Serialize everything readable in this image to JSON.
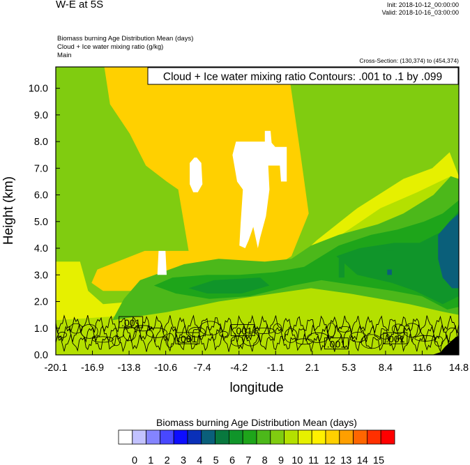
{
  "header": {
    "title": "W-E at 5S",
    "init": "Init: 2018-10-12_00:00:00",
    "valid": "Valid: 2018-10-16_03:00:00",
    "subtitle1": "Biomass burning Age Distribution Mean    (days)",
    "subtitle2": "Cloud + Ice water mixing ratio    (g/kg)",
    "subtitle3": "Main",
    "cross_section": "Cross-Section: (130,374) to (454,374)"
  },
  "chart_data": {
    "type": "heatmap",
    "title": "W-E at 5S",
    "xlabel": "longitude",
    "ylabel": "Height (km)",
    "xlim": [
      -20.1,
      14.8
    ],
    "ylim": [
      0.0,
      10.8
    ],
    "x_ticks": [
      "-20.1",
      "-16.9",
      "-13.8",
      "-10.6",
      "-7.4",
      "-4.2",
      "-1.1",
      "2.1",
      "5.3",
      "8.4",
      "11.6",
      "14.8"
    ],
    "y_ticks": [
      "0.0",
      "1.0",
      "2.0",
      "3.0",
      "4.0",
      "5.0",
      "6.0",
      "7.0",
      "8.0",
      "9.0",
      "10.0"
    ],
    "contour_info": "Cloud + Ice water mixing ratio Contours: .001 to .1 by .099",
    "contour_labels": [
      {
        "text": ".001",
        "x": -13.6,
        "y": 1.2
      },
      {
        "text": ".001",
        "x": -8.7,
        "y": 0.6
      },
      {
        "text": ".001",
        "x": -3.9,
        "y": 0.9
      },
      {
        "text": ".001",
        "x": 4.2,
        "y": 0.4
      },
      {
        "text": ".001",
        "x": 9.3,
        "y": 0.6
      }
    ],
    "colorbar": {
      "title": "Biomass burning Age Distribution Mean  (days)",
      "labels": [
        "0",
        "1",
        "2",
        "3",
        "4",
        "5",
        "6",
        "7",
        "8",
        "9",
        "10",
        "11",
        "12",
        "13",
        "14",
        "15"
      ],
      "colors": [
        "#ffffff",
        "#c2c2ff",
        "#8484ff",
        "#4848ff",
        "#0d0dff",
        "#0a30b8",
        "#0a5f7a",
        "#08783e",
        "#10952a",
        "#1ea51a",
        "#4cb81a",
        "#80cc10",
        "#b4e000",
        "#e6f000",
        "#fff000",
        "#ffd000",
        "#ff9f00",
        "#ff6600",
        "#ff3000",
        "#ff0000"
      ]
    },
    "series": [
      {
        "name": "age_regions",
        "regions": [
          {
            "value": 8.5,
            "polygon": [
              [
                -20.1,
                0
              ],
              [
                14.8,
                0
              ],
              [
                14.8,
                10.8
              ],
              [
                -20.1,
                10.8
              ]
            ]
          },
          {
            "value": 10.5,
            "polygon": [
              [
                -20.1,
                3.5
              ],
              [
                -18.0,
                3.5
              ],
              [
                -17.3,
                2.4
              ],
              [
                -16.0,
                1.9
              ],
              [
                -8.0,
                2.2
              ],
              [
                -1.2,
                2.8
              ],
              [
                2.5,
                4.3
              ],
              [
                6.0,
                5.5
              ],
              [
                10.0,
                6.6
              ],
              [
                12.5,
                7.0
              ],
              [
                14.0,
                7.6
              ],
              [
                14.8,
                6.7
              ],
              [
                14.8,
                0
              ],
              [
                -20.1,
                0
              ]
            ]
          },
          {
            "value": 11.5,
            "polygon": [
              [
                -15.9,
                10.8
              ],
              [
                -15.4,
                9.4
              ],
              [
                -13.7,
                8.3
              ],
              [
                -12.3,
                7.1
              ],
              [
                -10.5,
                6.5
              ],
              [
                -9.5,
                6.2
              ],
              [
                -8.6,
                3.9
              ],
              [
                -12.4,
                3.9
              ],
              [
                -16.5,
                3.2
              ],
              [
                -17.0,
                2.7
              ],
              [
                -16.0,
                2.4
              ],
              [
                -6.0,
                2.4
              ],
              [
                -2.3,
                3.0
              ],
              [
                0.3,
                3.7
              ],
              [
                1.8,
                5.3
              ],
              [
                1.1,
                7.5
              ],
              [
                0.6,
                9.0
              ],
              [
                0.0,
                10.8
              ]
            ]
          },
          {
            "value": 12.0,
            "polygon": [
              [
                -12.6,
                10.8
              ],
              [
                -12.0,
                10.1
              ],
              [
                -12.2,
                9.1
              ],
              [
                -11.6,
                8.3
              ],
              [
                -9.2,
                8.0
              ],
              [
                -8.3,
                7.2
              ],
              [
                -6.2,
                6.8
              ],
              [
                -3.9,
                6.7
              ],
              [
                -2.7,
                6.9
              ],
              [
                -1.1,
                6.8
              ],
              [
                -0.8,
                7.7
              ],
              [
                -1.0,
                10.8
              ]
            ]
          },
          {
            "value": 9.5,
            "polygon": [
              [
                -20.1,
                1.3
              ],
              [
                -12.8,
                1.5
              ],
              [
                -9.8,
                2.0
              ],
              [
                -3.9,
                2.3
              ],
              [
                0.3,
                2.9
              ],
              [
                2.6,
                3.7
              ],
              [
                4.6,
                4.5
              ],
              [
                8.0,
                5.5
              ],
              [
                11.2,
                6.1
              ],
              [
                14.1,
                6.7
              ],
              [
                14.8,
                6.5
              ],
              [
                14.8,
                0
              ],
              [
                -20.1,
                0
              ]
            ]
          },
          {
            "value": 8.0,
            "polygon": [
              [
                -15.2,
                1.3
              ],
              [
                -14.2,
                2.1
              ],
              [
                -12.8,
                2.8
              ],
              [
                -9.0,
                3.4
              ],
              [
                -6.0,
                3.6
              ],
              [
                -2.0,
                3.5
              ],
              [
                0.3,
                3.6
              ],
              [
                2.0,
                4.1
              ],
              [
                4.4,
                4.5
              ],
              [
                7.8,
                4.9
              ],
              [
                10.0,
                5.3
              ],
              [
                12.6,
                6.0
              ],
              [
                14.1,
                6.7
              ],
              [
                14.8,
                6.6
              ],
              [
                14.8,
                1.5
              ],
              [
                13.6,
                1.6
              ],
              [
                10.5,
                1.9
              ],
              [
                8.0,
                2.1
              ],
              [
                5.3,
                2.3
              ],
              [
                2.0,
                2.5
              ],
              [
                -1.2,
                2.3
              ],
              [
                -6.0,
                2.0
              ],
              [
                -10.5,
                1.6
              ],
              [
                -15.2,
                1.3
              ]
            ]
          },
          {
            "value": 7.0,
            "polygon": [
              [
                -11.6,
                2.6
              ],
              [
                -10.0,
                2.9
              ],
              [
                -7.0,
                3.0
              ],
              [
                -4.2,
                3.0
              ],
              [
                -1.2,
                3.1
              ],
              [
                1.4,
                3.3
              ],
              [
                4.4,
                4.1
              ],
              [
                7.2,
                4.5
              ],
              [
                9.5,
                4.7
              ],
              [
                11.8,
                5.0
              ],
              [
                13.4,
                5.3
              ],
              [
                14.8,
                5.8
              ],
              [
                14.8,
                1.8
              ],
              [
                13.8,
                1.7
              ],
              [
                11.6,
                2.2
              ],
              [
                9.1,
                2.4
              ],
              [
                6.0,
                2.6
              ],
              [
                2.9,
                2.8
              ],
              [
                0.4,
                2.6
              ],
              [
                -3.3,
                2.2
              ],
              [
                -6.8,
                2.1
              ],
              [
                -9.7,
                2.3
              ],
              [
                -11.6,
                2.6
              ]
            ]
          },
          {
            "value": 6.0,
            "polygon": [
              [
                -8.6,
                2.5
              ],
              [
                -6.4,
                2.8
              ],
              [
                -2.4,
                2.9
              ],
              [
                -1.6,
                2.6
              ],
              [
                -4.0,
                2.3
              ],
              [
                -7.0,
                2.3
              ],
              [
                -8.6,
                2.5
              ]
            ]
          },
          {
            "value": 6.0,
            "polygon": [
              [
                4.2,
                3.7
              ],
              [
                6.2,
                4.0
              ],
              [
                9.2,
                4.2
              ],
              [
                11.4,
                4.2
              ],
              [
                13.2,
                4.6
              ],
              [
                14.8,
                5.4
              ],
              [
                14.8,
                2.2
              ],
              [
                13.4,
                1.9
              ],
              [
                11.0,
                2.4
              ],
              [
                9.0,
                2.7
              ],
              [
                6.0,
                3.0
              ],
              [
                4.2,
                3.7
              ]
            ]
          },
          {
            "value": 5.0,
            "polygon": [
              [
                13.0,
                4.5
              ],
              [
                14.0,
                5.0
              ],
              [
                14.8,
                5.3
              ],
              [
                14.8,
                2.5
              ],
              [
                14.2,
                2.5
              ],
              [
                13.4,
                2.9
              ],
              [
                13.0,
                3.6
              ],
              [
                13.0,
                4.5
              ]
            ]
          },
          {
            "value": 6.0,
            "polygon": [
              [
                4.4,
                3.6
              ],
              [
                4.9,
                3.6
              ],
              [
                4.9,
                2.9
              ],
              [
                4.4,
                2.9
              ]
            ]
          },
          {
            "value": 6.0,
            "polygon": [
              [
                8.5,
                3.9
              ],
              [
                9.2,
                3.9
              ],
              [
                9.2,
                3.0
              ],
              [
                8.5,
                3.0
              ]
            ]
          },
          {
            "value": 5.0,
            "polygon": [
              [
                8.6,
                3.2
              ],
              [
                9.0,
                3.2
              ],
              [
                9.0,
                3.0
              ],
              [
                8.6,
                3.0
              ]
            ]
          },
          {
            "value": 0.0,
            "polygon": [
              [
                -4.5,
                8.0
              ],
              [
                -1.5,
                8.0
              ],
              [
                -1.1,
                7.8
              ],
              [
                -0.1,
                7.8
              ],
              [
                -0.1,
                6.5
              ],
              [
                -0.6,
                6.5
              ],
              [
                -0.7,
                7.1
              ],
              [
                -1.7,
                7.1
              ],
              [
                -1.6,
                6.2
              ],
              [
                -1.9,
                5.2
              ],
              [
                -2.4,
                4.4
              ],
              [
                -2.6,
                4.0
              ],
              [
                -3.0,
                4.8
              ],
              [
                -3.4,
                4.3
              ],
              [
                -3.7,
                4.0
              ],
              [
                -4.2,
                4.1
              ],
              [
                -4.1,
                4.9
              ],
              [
                -3.9,
                6.2
              ],
              [
                -4.4,
                6.5
              ],
              [
                -4.8,
                7.5
              ]
            ]
          },
          {
            "value": 0.0,
            "polygon": [
              [
                -7.9,
                7.4
              ],
              [
                -7.5,
                7.2
              ],
              [
                -7.4,
                6.4
              ],
              [
                -7.8,
                6.1
              ],
              [
                -8.2,
                6.1
              ],
              [
                -8.5,
                6.4
              ],
              [
                -8.5,
                7.2
              ],
              [
                -8.1,
                7.4
              ]
            ]
          },
          {
            "value": 0.0,
            "polygon": [
              [
                -11.2,
                3.9
              ],
              [
                -10.6,
                3.9
              ],
              [
                -10.5,
                3.0
              ],
              [
                -11.3,
                3.0
              ]
            ]
          },
          {
            "value": 0.0,
            "polygon": [
              [
                -2.0,
                8.4
              ],
              [
                -1.5,
                8.4
              ],
              [
                -1.4,
                7.9
              ],
              [
                -2.0,
                7.9
              ]
            ]
          },
          {
            "value": 12.0,
            "polygon": [
              [
                -9.4,
                10.8
              ],
              [
                -9.3,
                10.1
              ],
              [
                -9.2,
                10.8
              ]
            ]
          }
        ]
      },
      {
        "name": "terrain",
        "polygon": [
          [
            12.5,
            0
          ],
          [
            13.2,
            0.1
          ],
          [
            13.6,
            0.3
          ],
          [
            14.1,
            0.5
          ],
          [
            14.5,
            0.65
          ],
          [
            14.8,
            0.7
          ],
          [
            14.8,
            0
          ]
        ]
      }
    ]
  }
}
